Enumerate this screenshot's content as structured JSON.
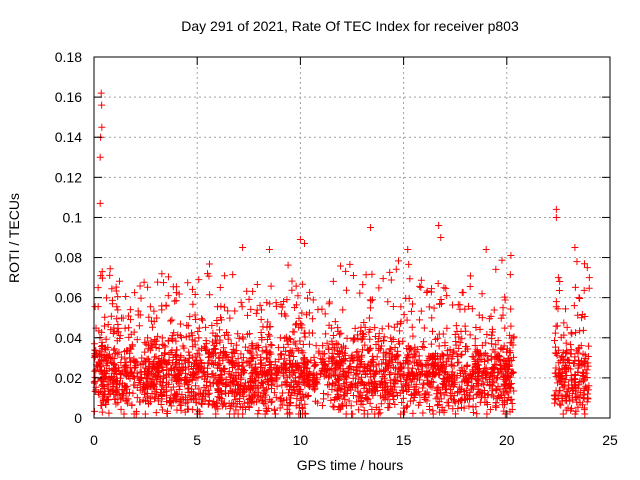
{
  "chart_data": {
    "type": "scatter",
    "title": "Day 291 of 2021, Rate Of TEC Index for receiver p803",
    "xlabel": "GPS time / hours",
    "ylabel": "ROTI / TECUs",
    "xlim": [
      0,
      25
    ],
    "ylim": [
      0,
      0.18
    ],
    "xticks": [
      0,
      5,
      10,
      15,
      20,
      25
    ],
    "xtick_labels": [
      "0",
      "5",
      "10",
      "15",
      "20",
      "25"
    ],
    "yticks": [
      0,
      0.02,
      0.04,
      0.06,
      0.08,
      0.1,
      0.12,
      0.14,
      0.16,
      0.18
    ],
    "ytick_labels": [
      "0",
      "0.02",
      "0.04",
      "0.06",
      "0.08",
      "0.1",
      "0.12",
      "0.14",
      "0.16",
      "0.18"
    ],
    "grid": true,
    "marker": "+",
    "series_color": "#ff0000",
    "data_coverage_hours": [
      [
        0,
        20.35
      ],
      [
        22.3,
        24.0
      ]
    ],
    "baseline_band": [
      0.005,
      0.04
    ],
    "highlighted_points": [
      {
        "x": 0.2,
        "y": 0.065
      },
      {
        "x": 0.3,
        "y": 0.13
      },
      {
        "x": 0.32,
        "y": 0.14
      },
      {
        "x": 0.35,
        "y": 0.162
      },
      {
        "x": 0.37,
        "y": 0.156
      },
      {
        "x": 0.38,
        "y": 0.145
      },
      {
        "x": 0.3,
        "y": 0.107
      },
      {
        "x": 0.4,
        "y": 0.073
      },
      {
        "x": 2.2,
        "y": 0.046
      },
      {
        "x": 3.6,
        "y": 0.061
      },
      {
        "x": 5.5,
        "y": 0.072
      },
      {
        "x": 7.2,
        "y": 0.085
      },
      {
        "x": 8.5,
        "y": 0.084
      },
      {
        "x": 10.0,
        "y": 0.089
      },
      {
        "x": 10.2,
        "y": 0.087
      },
      {
        "x": 13.4,
        "y": 0.095
      },
      {
        "x": 15.2,
        "y": 0.084
      },
      {
        "x": 16.7,
        "y": 0.096
      },
      {
        "x": 16.8,
        "y": 0.09
      },
      {
        "x": 19.0,
        "y": 0.084
      },
      {
        "x": 20.2,
        "y": 0.081
      },
      {
        "x": 22.4,
        "y": 0.104
      },
      {
        "x": 22.4,
        "y": 0.1
      },
      {
        "x": 22.5,
        "y": 0.07
      },
      {
        "x": 23.3,
        "y": 0.085
      },
      {
        "x": 23.4,
        "y": 0.078
      },
      {
        "x": 23.5,
        "y": 0.06
      },
      {
        "x": 23.9,
        "y": 0.075
      },
      {
        "x": 24.0,
        "y": 0.07
      }
    ]
  }
}
